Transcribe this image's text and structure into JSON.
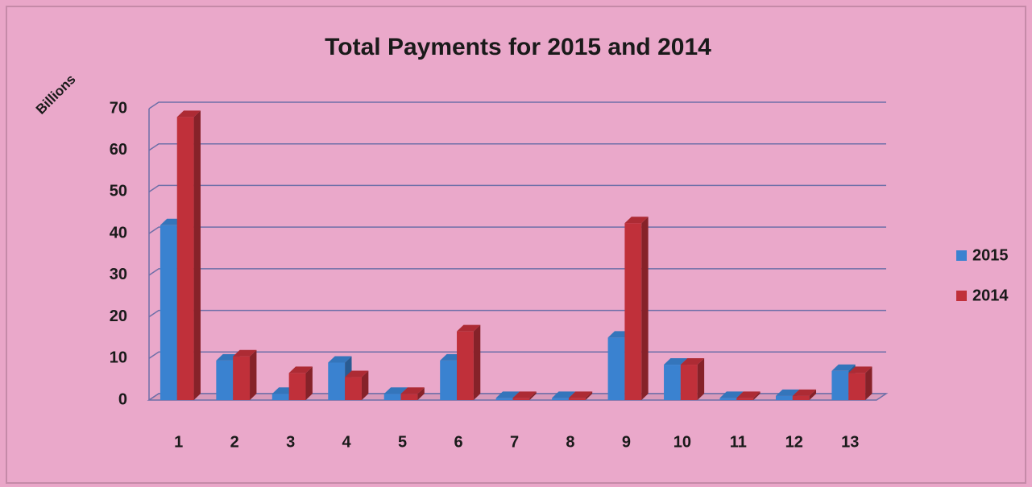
{
  "chart_data": {
    "type": "bar",
    "title": "Total Payments for 2015 and 2014",
    "y_label": "Billions",
    "categories": [
      "1",
      "2",
      "3",
      "4",
      "5",
      "6",
      "7",
      "8",
      "9",
      "10",
      "11",
      "12",
      "13"
    ],
    "series": [
      {
        "name": "2015",
        "color": "#3a82d0",
        "values": [
          42,
          9.5,
          1.5,
          9,
          1.5,
          9.5,
          0.5,
          0.5,
          15,
          8.5,
          0.5,
          1,
          7
        ]
      },
      {
        "name": "2014",
        "color": "#c0303a",
        "values": [
          68,
          10.5,
          6.5,
          5.5,
          1.5,
          16.5,
          0.5,
          0.5,
          42.5,
          8.5,
          0.5,
          1,
          6.5
        ]
      }
    ],
    "ylim": [
      0,
      70
    ],
    "yticks": [
      0,
      10,
      20,
      30,
      40,
      50,
      60,
      70
    ],
    "grid": true,
    "legend": "right"
  }
}
